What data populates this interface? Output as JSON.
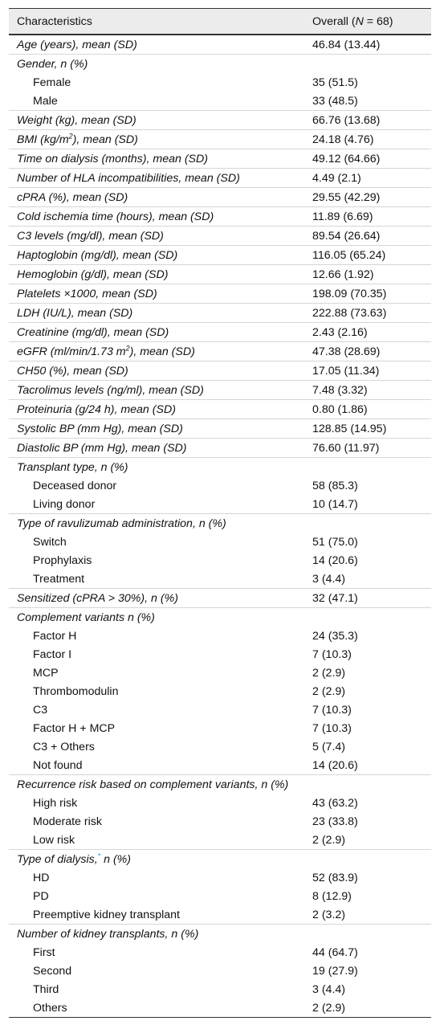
{
  "table": {
    "header": [
      "Characteristics",
      [
        "Overall (",
        "N",
        " = 68)"
      ]
    ],
    "rows": [
      {
        "label": "Age (years), mean (SD)",
        "value": "46.84 (13.44)"
      },
      {
        "label": "Gender, n (%)",
        "items": [
          {
            "label": "Female",
            "value": "35 (51.5)"
          },
          {
            "label": "Male",
            "value": "33 (48.5)"
          }
        ]
      },
      {
        "label": "Weight (kg), mean (SD)",
        "value": "66.76 (13.68)"
      },
      {
        "label": [
          "BMI (kg/m",
          "2",
          "), mean (SD)"
        ],
        "value": "24.18 (4.76)"
      },
      {
        "label": "Time on dialysis (months), mean (SD)",
        "value": "49.12 (64.66)"
      },
      {
        "label": "Number of HLA incompatibilities, mean (SD)",
        "value": "4.49 (2.1)"
      },
      {
        "label": "cPRA (%), mean (SD)",
        "value": "29.55 (42.29)"
      },
      {
        "label": "Cold ischemia time (hours), mean (SD)",
        "value": "11.89 (6.69)"
      },
      {
        "label": "C3 levels (mg/dl), mean (SD)",
        "value": "89.54 (26.64)"
      },
      {
        "label": "Haptoglobin (mg/dl), mean (SD)",
        "value": "116.05 (65.24)"
      },
      {
        "label": "Hemoglobin (g/dl), mean (SD)",
        "value": "12.66 (1.92)"
      },
      {
        "label": "Platelets ×1000, mean (SD)",
        "value": "198.09 (70.35)"
      },
      {
        "label": "LDH (IU/L), mean (SD)",
        "value": "222.88 (73.63)"
      },
      {
        "label": "Creatinine (mg/dl), mean (SD)",
        "value": "2.43 (2.16)"
      },
      {
        "label": [
          "eGFR (ml/min/1.73 m",
          "2",
          "), mean (SD)"
        ],
        "value": "47.38 (28.69)"
      },
      {
        "label": "CH50 (%), mean (SD)",
        "value": "17.05 (11.34)"
      },
      {
        "label": "Tacrolimus levels (ng/ml), mean (SD)",
        "value": "7.48 (3.32)"
      },
      {
        "label": "Proteinuria (g/24 h), mean (SD)",
        "value": "0.80 (1.86)"
      },
      {
        "label": "Systolic BP (mm Hg), mean (SD)",
        "value": "128.85 (14.95)"
      },
      {
        "label": "Diastolic BP (mm Hg), mean (SD)",
        "value": "76.60 (11.97)"
      },
      {
        "label": "Transplant type, n (%)",
        "items": [
          {
            "label": "Deceased donor",
            "value": "58 (85.3)"
          },
          {
            "label": "Living donor",
            "value": "10 (14.7)"
          }
        ]
      },
      {
        "label": "Type of ravulizumab administration, n (%)",
        "items": [
          {
            "label": "Switch",
            "value": "51 (75.0)"
          },
          {
            "label": "Prophylaxis",
            "value": "14 (20.6)"
          },
          {
            "label": "Treatment",
            "value": "3 (4.4)"
          }
        ]
      },
      {
        "label": "Sensitized (cPRA > 30%), n (%)",
        "value": "32 (47.1)"
      },
      {
        "label": "Complement variants n (%)",
        "items": [
          {
            "label": "Factor H",
            "value": "24 (35.3)"
          },
          {
            "label": "Factor I",
            "value": "7 (10.3)"
          },
          {
            "label": "MCP",
            "value": "2 (2.9)"
          },
          {
            "label": "Thrombomodulin",
            "value": "2 (2.9)"
          },
          {
            "label": "C3",
            "value": "7 (10.3)"
          },
          {
            "label": "Factor H + MCP",
            "value": "7 (10.3)"
          },
          {
            "label": "C3 + Others",
            "value": "5 (7.4)"
          },
          {
            "label": "Not found",
            "value": "14 (20.6)"
          }
        ]
      },
      {
        "label": "Recurrence risk based on complement variants, n (%)",
        "items": [
          {
            "label": "High risk",
            "value": "43 (63.2)"
          },
          {
            "label": "Moderate risk",
            "value": "23 (33.8)"
          },
          {
            "label": "Low risk",
            "value": "2 (2.9)"
          }
        ]
      },
      {
        "label": [
          "Type of dialysis,",
          "*",
          " n (%)"
        ],
        "items": [
          {
            "label": "HD",
            "value": "52 (83.9)"
          },
          {
            "label": "PD",
            "value": "8 (12.9)"
          },
          {
            "label": "Preemptive kidney transplant",
            "value": "2 (3.2)"
          }
        ]
      },
      {
        "label": "Number of kidney transplants, n (%)",
        "items": [
          {
            "label": "First",
            "value": "44 (64.7)"
          },
          {
            "label": "Second",
            "value": "19 (27.9)"
          },
          {
            "label": "Third",
            "value": "3 (4.4)"
          },
          {
            "label": "Others",
            "value": "2 (2.9)"
          }
        ]
      }
    ]
  }
}
